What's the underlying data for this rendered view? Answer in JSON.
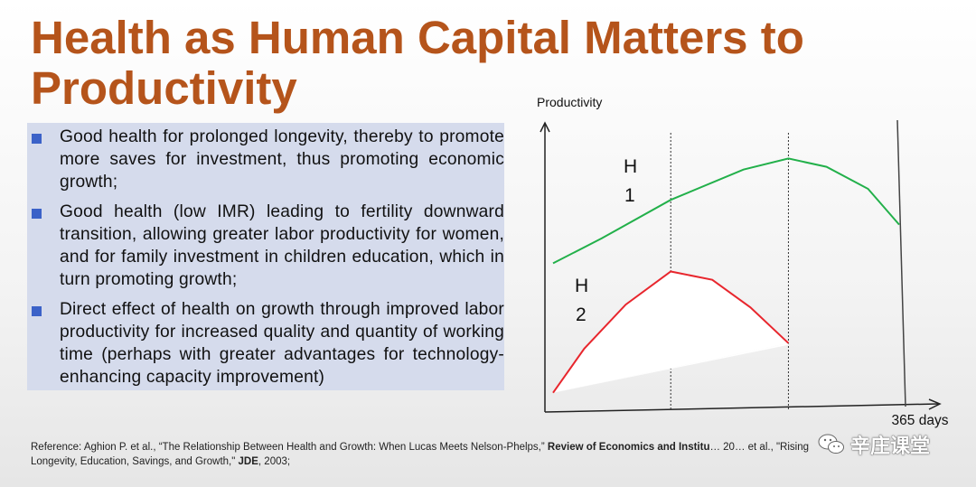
{
  "slide": {
    "title": "Health as Human Capital Matters to Productivity",
    "bullets": [
      "Good health for prolonged longevity, thereby to promote more saves for investment, thus promoting economic growth;",
      "Good health (low IMR) leading to fertility downward transition, allowing greater labor productivity for women, and for family investment in children education, which in turn promoting growth;",
      "Direct effect of health on growth through improved labor productivity for increased quality and quantity of working time (perhaps with greater advantages for technology-enhancing capacity improvement)"
    ],
    "reference": {
      "prefix": "Reference:  Aghion P. et al., “The Relationship Between Health and Growth: When Lucas Meets Nelson-Phelps,” ",
      "journal1": "Review of Economics and Institu",
      "middle": "… 20… et al., \"Rising Longevity, Education, Savings, and Growth,\" ",
      "journal2": "JDE",
      "suffix": ", 2003;"
    },
    "watermark": "辛庄课堂",
    "watermark_icon": "wechat-icon",
    "bullet_color": "#3b62c8",
    "title_color": "#b5541b",
    "panel_color": "#d5dbec"
  },
  "chart_data": {
    "type": "line",
    "ylabel": "Productivity",
    "xlabel": "365 days",
    "series": [
      {
        "name": "H1",
        "label_lines": [
          "H",
          "1"
        ],
        "color": "#22b04a",
        "x": [
          0,
          0.14,
          0.34,
          0.55,
          0.68,
          0.79,
          0.91,
          1.0
        ],
        "y": [
          0.53,
          0.62,
          0.76,
          0.87,
          0.91,
          0.88,
          0.8,
          0.67
        ]
      },
      {
        "name": "H2",
        "label_lines": [
          "H",
          "2"
        ],
        "color": "#e8262d",
        "x": [
          0,
          0.09,
          0.21,
          0.34,
          0.46,
          0.57,
          0.68
        ],
        "y": [
          0.06,
          0.22,
          0.38,
          0.5,
          0.47,
          0.37,
          0.24
        ]
      }
    ],
    "markers_x": [
      0.34,
      0.68,
      1.0
    ],
    "grid": false,
    "legend": "none"
  }
}
